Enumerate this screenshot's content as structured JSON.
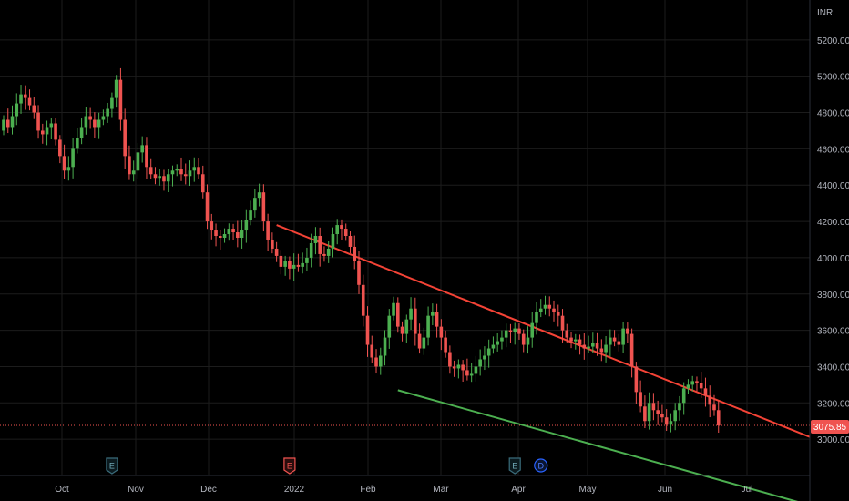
{
  "chart_data": {
    "type": "candlestick",
    "currency_label": "INR",
    "last_price_label": "3075.85",
    "last_price": 3075.85,
    "grid": true,
    "colors": {
      "background": "#000000",
      "grid": "#1c1c1c",
      "up": "#26a69a",
      "up_body": "#4caf50",
      "down": "#ef5350",
      "resistance_line": "#f44336",
      "support_line": "#4caf50",
      "last_price_line": "#ef5350",
      "event_earnings": "#3a6b7a",
      "event_dividend": "#2962ff",
      "axis_text": "#b2b5be"
    },
    "y_ticks": [
      3000,
      3200,
      3400,
      3600,
      3800,
      4000,
      4200,
      4400,
      4600,
      4800,
      5000,
      5200
    ],
    "y_tick_labels": [
      "3000.00",
      "3200.00",
      "3400.00",
      "3600.00",
      "3800.00",
      "4000.00",
      "4200.00",
      "4400.00",
      "4600.00",
      "4800.00",
      "5000.00",
      "5200.00"
    ],
    "y_range": [
      2800,
      5420
    ],
    "x_tick_labels": [
      "Oct",
      "Nov",
      "Dec",
      "2022",
      "Feb",
      "Mar",
      "Apr",
      "May",
      "Jun",
      "Jul"
    ],
    "closes": [
      4760,
      4720,
      4780,
      4850,
      4900,
      4880,
      4840,
      4800,
      4700,
      4680,
      4720,
      4740,
      4650,
      4560,
      4480,
      4500,
      4600,
      4660,
      4720,
      4780,
      4760,
      4720,
      4760,
      4780,
      4820,
      4880,
      4980,
      4760,
      4560,
      4460,
      4480,
      4580,
      4620,
      4500,
      4460,
      4440,
      4450,
      4420,
      4460,
      4480,
      4490,
      4460,
      4450,
      4480,
      4500,
      4460,
      4360,
      4200,
      4150,
      4120,
      4110,
      4130,
      4160,
      4140,
      4110,
      4150,
      4210,
      4260,
      4330,
      4360,
      4200,
      4100,
      4050,
      4010,
      3950,
      3980,
      3940,
      3960,
      3950,
      3970,
      4000,
      4080,
      4120,
      4020,
      4010,
      4050,
      4130,
      4180,
      4160,
      4120,
      4060,
      3980,
      3850,
      3680,
      3520,
      3450,
      3400,
      3460,
      3560,
      3680,
      3750,
      3620,
      3580,
      3660,
      3720,
      3580,
      3500,
      3560,
      3680,
      3700,
      3620,
      3560,
      3480,
      3400,
      3390,
      3410,
      3380,
      3350,
      3360,
      3400,
      3440,
      3460,
      3500,
      3520,
      3540,
      3560,
      3600,
      3590,
      3610,
      3580,
      3520,
      3560,
      3640,
      3700,
      3720,
      3740,
      3720,
      3700,
      3680,
      3600,
      3560,
      3540,
      3550,
      3520,
      3500,
      3510,
      3530,
      3500,
      3480,
      3520,
      3560,
      3540,
      3520,
      3610,
      3580,
      3400,
      3260,
      3180,
      3100,
      3200,
      3160,
      3140,
      3120,
      3080,
      3100,
      3160,
      3200,
      3280,
      3300,
      3320,
      3310,
      3280,
      3240,
      3190,
      3160,
      3075.85
    ],
    "start_open": 4700,
    "resistance_line": {
      "from": {
        "index": 63,
        "price": 4180
      },
      "to": {
        "index": 160,
        "price": 3260
      }
    },
    "support_line": {
      "from": {
        "index": 91,
        "price": 3270
      },
      "to": {
        "index": 160,
        "price": 2810
      }
    },
    "events": [
      {
        "label": "E",
        "index": 25,
        "kind": "earnings"
      },
      {
        "label": "E",
        "index": 66,
        "kind": "earnings-red"
      },
      {
        "label": "E",
        "index": 118,
        "kind": "earnings"
      },
      {
        "label": "D",
        "index": 124,
        "kind": "dividend"
      }
    ]
  }
}
